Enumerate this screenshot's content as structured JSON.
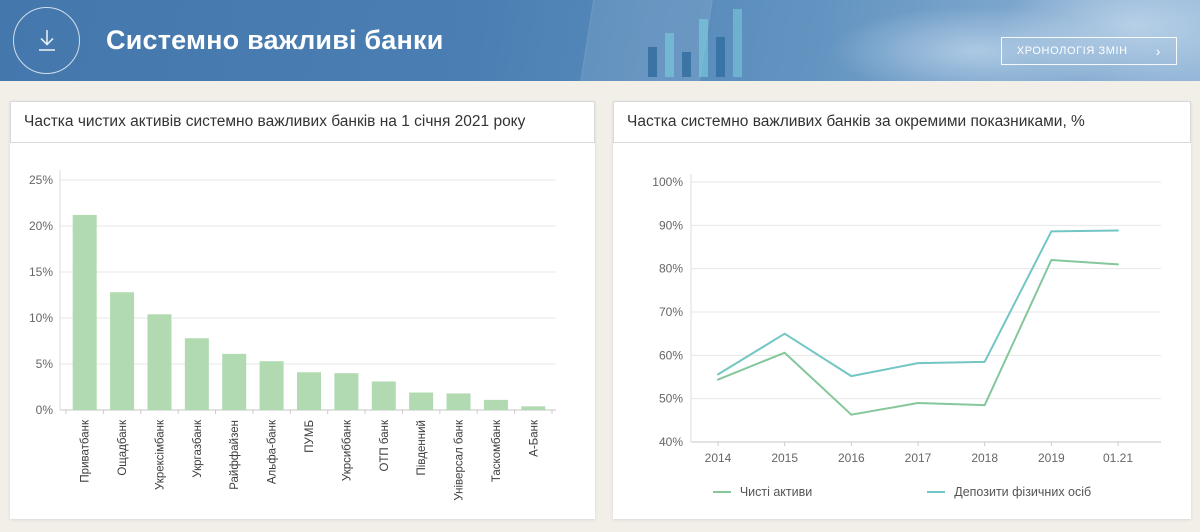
{
  "header": {
    "title": "Системно важливі банки",
    "button": {
      "label": "ХРОНОЛОГІЯ ЗМІН",
      "chevron": "›"
    },
    "icons": {
      "download": "download-icon",
      "chevron_right": "chevron-right-icon"
    },
    "colors": {
      "background_blue": "#4478ad",
      "text": "#ffffff"
    }
  },
  "panels": {
    "bar_panel": {
      "title": "Частка чистих активів системно важливих банків на 1 січня 2021 року"
    },
    "line_panel": {
      "title": "Частка системно важливих банків за окремими показниками, %"
    }
  },
  "chart_data": [
    {
      "type": "bar",
      "title": "Частка чистих активів системно важливих банків на 1 січня 2021 року",
      "categories": [
        "Приватбанк",
        "Ощадбанк",
        "Укрексімбанк",
        "Укргазбанк",
        "Райффайзен",
        "Альфа-банк",
        "ПУМБ",
        "Укрсиббанк",
        "ОТП банк",
        "Південний",
        "Універсал банк",
        "Таскомбанк",
        "А-Банк"
      ],
      "values": [
        21.2,
        12.8,
        10.4,
        7.8,
        6.1,
        5.3,
        4.1,
        4.0,
        3.1,
        1.9,
        1.8,
        1.1,
        0.4
      ],
      "ylabel": "",
      "xlabel": "",
      "ylim": [
        0,
        25
      ],
      "ytick_step": 5,
      "ytick_suffix": "%",
      "bar_color": "#b1dab1",
      "grid": true
    },
    {
      "type": "line",
      "title": "Частка системно важливих банків за окремими показниками, %",
      "x": [
        "2014",
        "2015",
        "2016",
        "2017",
        "2018",
        "2019",
        "01.21"
      ],
      "series": [
        {
          "name": "Чисті активи",
          "color": "#85c79b",
          "values": [
            54.4,
            60.6,
            46.3,
            49.0,
            48.5,
            82.0,
            81.0
          ]
        },
        {
          "name": "Депозити фізичних осіб",
          "color": "#72c6c3",
          "values": [
            55.6,
            65.0,
            55.2,
            58.2,
            58.5,
            88.6,
            88.8
          ]
        }
      ],
      "ylabel": "",
      "xlabel": "",
      "ylim": [
        40,
        100
      ],
      "ytick_step": 10,
      "ytick_suffix": "%",
      "grid": true,
      "legend_position": "bottom"
    }
  ],
  "colors": {
    "page_background": "#f2efe9",
    "panel_background": "#ffffff",
    "bar_green": "#b1dab1",
    "line_green": "#85c79b",
    "line_teal": "#72c6c3",
    "grid_gray": "#e7e7e7"
  }
}
